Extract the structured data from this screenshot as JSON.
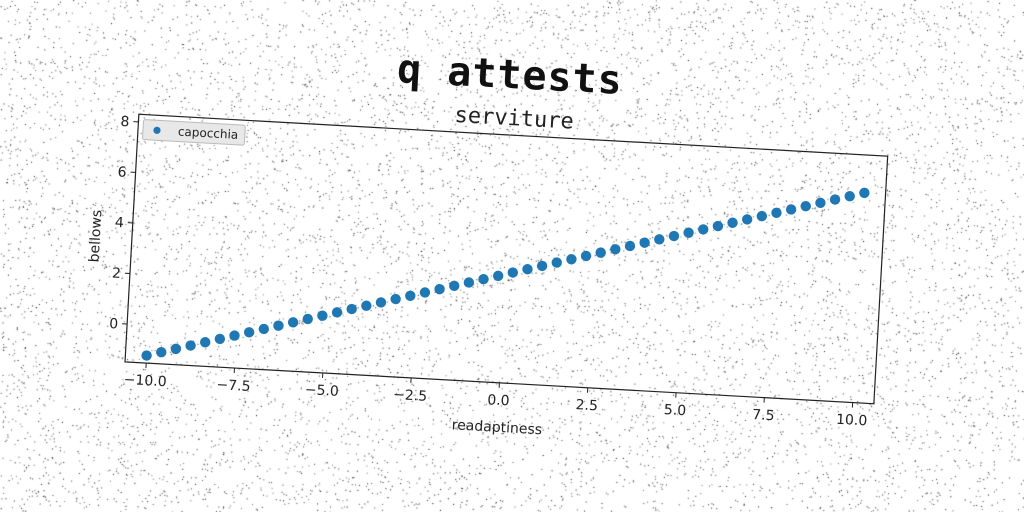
{
  "suptitle": "q attests",
  "chart_data": {
    "type": "scatter",
    "title": "serviture",
    "xlabel": "readaptiness",
    "ylabel": "bellows",
    "xlim": [
      -10.6,
      10.6
    ],
    "ylim": [
      -1.5,
      8.3
    ],
    "xticks": [
      -10.0,
      -7.5,
      -5.0,
      -2.5,
      0.0,
      2.5,
      5.0,
      7.5,
      10.0
    ],
    "xtick_labels": [
      "−10.0",
      "−7.5",
      "−5.0",
      "−2.5",
      "0.0",
      "2.5",
      "5.0",
      "7.5",
      "10.0"
    ],
    "yticks": [
      0,
      2,
      4,
      6,
      8
    ],
    "ytick_labels": [
      "0",
      "2",
      "4",
      "6",
      "8"
    ],
    "legend": "top-left",
    "grid": false,
    "series": [
      {
        "name": "capocchia",
        "color": "#1f77b4",
        "x_start": -10.0,
        "x_end": 10.0,
        "n_points": 50,
        "y_start": -1.2,
        "y_end": 6.8
      }
    ]
  }
}
